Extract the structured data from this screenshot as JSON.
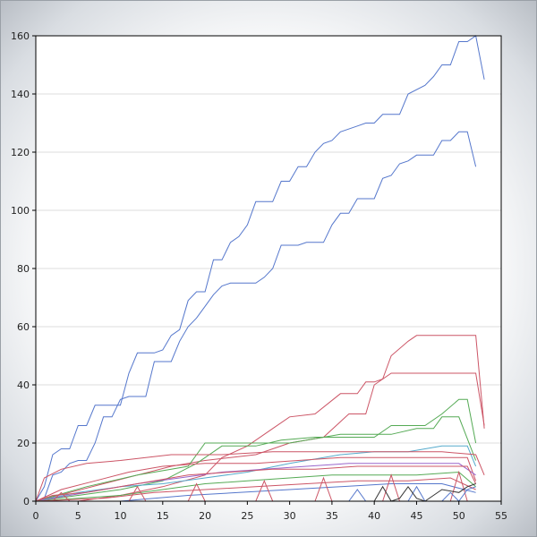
{
  "chart_data": {
    "type": "line",
    "title": "",
    "xlabel": "",
    "ylabel": "",
    "xlim": [
      0,
      55
    ],
    "ylim": [
      0,
      160
    ],
    "x_ticks": [
      "0",
      "5",
      "10",
      "15",
      "20",
      "25",
      "30",
      "35",
      "40",
      "45",
      "50",
      "55"
    ],
    "y_ticks": [
      "0",
      "20",
      "40",
      "60",
      "80",
      "100",
      "120",
      "140",
      "160"
    ],
    "grid": "horizontal",
    "legend": "none",
    "series": [
      {
        "color": "#5577cc",
        "points": [
          [
            0,
            0
          ],
          [
            1,
            5
          ],
          [
            2,
            16
          ],
          [
            3,
            18
          ],
          [
            4,
            18
          ],
          [
            5,
            26
          ],
          [
            6,
            26
          ],
          [
            7,
            33
          ],
          [
            9,
            33
          ],
          [
            10,
            33
          ],
          [
            11,
            44
          ],
          [
            12,
            51
          ],
          [
            14,
            51
          ],
          [
            15,
            52
          ],
          [
            16,
            57
          ],
          [
            17,
            59
          ],
          [
            18,
            69
          ],
          [
            19,
            72
          ],
          [
            20,
            72
          ],
          [
            21,
            83
          ],
          [
            22,
            83
          ],
          [
            23,
            89
          ],
          [
            24,
            91
          ],
          [
            25,
            95
          ],
          [
            26,
            103
          ],
          [
            28,
            103
          ],
          [
            29,
            110
          ],
          [
            30,
            110
          ],
          [
            31,
            115
          ],
          [
            32,
            115
          ],
          [
            33,
            120
          ],
          [
            34,
            123
          ],
          [
            35,
            124
          ],
          [
            36,
            127
          ],
          [
            38,
            129
          ],
          [
            39,
            130
          ],
          [
            40,
            130
          ],
          [
            41,
            133
          ],
          [
            43,
            133
          ],
          [
            44,
            140
          ],
          [
            46,
            143
          ],
          [
            47,
            146
          ],
          [
            48,
            150
          ],
          [
            49,
            150
          ],
          [
            50,
            158
          ],
          [
            51,
            158
          ],
          [
            52,
            160
          ],
          [
            53,
            145
          ]
        ]
      },
      {
        "color": "#5577cc",
        "points": [
          [
            0,
            0
          ],
          [
            1,
            1
          ],
          [
            2,
            9
          ],
          [
            3,
            10
          ],
          [
            4,
            13
          ],
          [
            5,
            14
          ],
          [
            6,
            14
          ],
          [
            7,
            20
          ],
          [
            8,
            29
          ],
          [
            9,
            29
          ],
          [
            10,
            35
          ],
          [
            11,
            36
          ],
          [
            13,
            36
          ],
          [
            14,
            48
          ],
          [
            16,
            48
          ],
          [
            17,
            55
          ],
          [
            18,
            60
          ],
          [
            19,
            63
          ],
          [
            20,
            67
          ],
          [
            21,
            71
          ],
          [
            22,
            74
          ],
          [
            23,
            75
          ],
          [
            26,
            75
          ],
          [
            27,
            77
          ],
          [
            28,
            80
          ],
          [
            29,
            88
          ],
          [
            31,
            88
          ],
          [
            32,
            89
          ],
          [
            34,
            89
          ],
          [
            35,
            95
          ],
          [
            36,
            99
          ],
          [
            37,
            99
          ],
          [
            38,
            104
          ],
          [
            40,
            104
          ],
          [
            41,
            111
          ],
          [
            42,
            112
          ],
          [
            43,
            116
          ],
          [
            44,
            117
          ],
          [
            45,
            119
          ],
          [
            47,
            119
          ],
          [
            48,
            124
          ],
          [
            49,
            124
          ],
          [
            50,
            127
          ],
          [
            51,
            127
          ],
          [
            52,
            115
          ]
        ]
      },
      {
        "color": "#cc5566",
        "points": [
          [
            0,
            0
          ],
          [
            5,
            0
          ],
          [
            10,
            2
          ],
          [
            15,
            5
          ],
          [
            20,
            9
          ],
          [
            22,
            15
          ],
          [
            25,
            19
          ],
          [
            28,
            25
          ],
          [
            30,
            29
          ],
          [
            33,
            30
          ],
          [
            36,
            37
          ],
          [
            38,
            37
          ],
          [
            39,
            41
          ],
          [
            40,
            41
          ],
          [
            41,
            42
          ],
          [
            42,
            50
          ],
          [
            44,
            55
          ],
          [
            45,
            57
          ],
          [
            52,
            57
          ],
          [
            53,
            25
          ]
        ]
      },
      {
        "color": "#cc5566",
        "points": [
          [
            0,
            0
          ],
          [
            4,
            3
          ],
          [
            8,
            6
          ],
          [
            12,
            9
          ],
          [
            16,
            12
          ],
          [
            20,
            14
          ],
          [
            26,
            16
          ],
          [
            30,
            20
          ],
          [
            34,
            22
          ],
          [
            37,
            30
          ],
          [
            39,
            30
          ],
          [
            40,
            40
          ],
          [
            42,
            44
          ],
          [
            52,
            44
          ],
          [
            53,
            26
          ]
        ]
      },
      {
        "color": "#55aa55",
        "points": [
          [
            0,
            0
          ],
          [
            5,
            2
          ],
          [
            10,
            4
          ],
          [
            15,
            7
          ],
          [
            19,
            13
          ],
          [
            20,
            15
          ],
          [
            22,
            19
          ],
          [
            26,
            19
          ],
          [
            29,
            21
          ],
          [
            33,
            22
          ],
          [
            37,
            22
          ],
          [
            40,
            22
          ],
          [
            42,
            26
          ],
          [
            46,
            26
          ],
          [
            48,
            30
          ],
          [
            50,
            35
          ],
          [
            51,
            35
          ],
          [
            52,
            20
          ]
        ]
      },
      {
        "color": "#55aa55",
        "points": [
          [
            0,
            0
          ],
          [
            6,
            5
          ],
          [
            12,
            9
          ],
          [
            18,
            12
          ],
          [
            20,
            20
          ],
          [
            30,
            20
          ],
          [
            36,
            23
          ],
          [
            42,
            23
          ],
          [
            45,
            25
          ],
          [
            47,
            25
          ],
          [
            48,
            29
          ],
          [
            50,
            29
          ],
          [
            52,
            14
          ]
        ]
      },
      {
        "color": "#55aacc",
        "points": [
          [
            0,
            0
          ],
          [
            5,
            3
          ],
          [
            10,
            5
          ],
          [
            15,
            6
          ],
          [
            20,
            8
          ],
          [
            25,
            10
          ],
          [
            30,
            13
          ],
          [
            36,
            16
          ],
          [
            40,
            17
          ],
          [
            44,
            17
          ],
          [
            48,
            19
          ],
          [
            51,
            19
          ],
          [
            52,
            12
          ]
        ]
      },
      {
        "color": "#cc5566",
        "points": [
          [
            0,
            0
          ],
          [
            1,
            8
          ],
          [
            3,
            11
          ],
          [
            6,
            13
          ],
          [
            10,
            14
          ],
          [
            13,
            15
          ],
          [
            16,
            16
          ],
          [
            22,
            16
          ],
          [
            28,
            17
          ],
          [
            34,
            17
          ],
          [
            38,
            17
          ],
          [
            42,
            17
          ],
          [
            48,
            17
          ],
          [
            52,
            16
          ],
          [
            53,
            9
          ]
        ]
      },
      {
        "color": "#cc5566",
        "points": [
          [
            0,
            0
          ],
          [
            3,
            4
          ],
          [
            7,
            7
          ],
          [
            11,
            10
          ],
          [
            15,
            12
          ],
          [
            20,
            13
          ],
          [
            26,
            13
          ],
          [
            31,
            14
          ],
          [
            36,
            15
          ],
          [
            40,
            15
          ],
          [
            44,
            15
          ],
          [
            48,
            15
          ],
          [
            51,
            15
          ],
          [
            52,
            7
          ]
        ]
      },
      {
        "color": "#9966cc",
        "points": [
          [
            0,
            0
          ],
          [
            4,
            2
          ],
          [
            8,
            4
          ],
          [
            12,
            6
          ],
          [
            17,
            8
          ],
          [
            22,
            10
          ],
          [
            27,
            11
          ],
          [
            32,
            12
          ],
          [
            37,
            13
          ],
          [
            42,
            13
          ],
          [
            46,
            13
          ],
          [
            50,
            13
          ],
          [
            52,
            9
          ]
        ]
      },
      {
        "color": "#cc5566",
        "points": [
          [
            0,
            0
          ],
          [
            2,
            2
          ],
          [
            6,
            3
          ],
          [
            10,
            5
          ],
          [
            14,
            7
          ],
          [
            18,
            9
          ],
          [
            23,
            10
          ],
          [
            28,
            11
          ],
          [
            33,
            11
          ],
          [
            38,
            12
          ],
          [
            43,
            12
          ],
          [
            47,
            12
          ],
          [
            51,
            12
          ],
          [
            52,
            6
          ]
        ]
      },
      {
        "color": "#55aa55",
        "points": [
          [
            0,
            0
          ],
          [
            5,
            1
          ],
          [
            10,
            2
          ],
          [
            15,
            4
          ],
          [
            20,
            6
          ],
          [
            25,
            7
          ],
          [
            30,
            8
          ],
          [
            35,
            9
          ],
          [
            40,
            9
          ],
          [
            45,
            9
          ],
          [
            50,
            10
          ],
          [
            52,
            5
          ]
        ]
      },
      {
        "color": "#cc5566",
        "points": [
          [
            0,
            0
          ],
          [
            8,
            1
          ],
          [
            14,
            3
          ],
          [
            20,
            4
          ],
          [
            26,
            5
          ],
          [
            32,
            6
          ],
          [
            38,
            7
          ],
          [
            44,
            7
          ],
          [
            49,
            8
          ],
          [
            52,
            4
          ]
        ]
      },
      {
        "color": "#5577cc",
        "points": [
          [
            0,
            0
          ],
          [
            10,
            0
          ],
          [
            18,
            2
          ],
          [
            24,
            3
          ],
          [
            30,
            4
          ],
          [
            36,
            5
          ],
          [
            42,
            6
          ],
          [
            48,
            6
          ],
          [
            52,
            3
          ]
        ]
      },
      {
        "color": "#cc5566",
        "points": [
          [
            2,
            0
          ],
          [
            3,
            3
          ],
          [
            4,
            0
          ],
          [
            11,
            0
          ],
          [
            12,
            5
          ],
          [
            13,
            0
          ],
          [
            18,
            0
          ],
          [
            19,
            6
          ],
          [
            20,
            0
          ],
          [
            26,
            0
          ],
          [
            27,
            7
          ],
          [
            28,
            0
          ],
          [
            33,
            0
          ],
          [
            34,
            8
          ],
          [
            35,
            0
          ],
          [
            41,
            0
          ],
          [
            42,
            9
          ],
          [
            43,
            0
          ],
          [
            49,
            0
          ],
          [
            50,
            10
          ],
          [
            51,
            0
          ]
        ]
      },
      {
        "color": "#5577cc",
        "points": [
          [
            37,
            0
          ],
          [
            38,
            4
          ],
          [
            39,
            0
          ],
          [
            44,
            0
          ],
          [
            45,
            5
          ],
          [
            46,
            0
          ],
          [
            48,
            0
          ],
          [
            49,
            3
          ],
          [
            50,
            0
          ],
          [
            51,
            4
          ],
          [
            52,
            5
          ]
        ]
      },
      {
        "color": "#333333",
        "points": [
          [
            40,
            0
          ],
          [
            41,
            5
          ],
          [
            42,
            0
          ],
          [
            43,
            1
          ],
          [
            44,
            5
          ],
          [
            45,
            1
          ],
          [
            46,
            0
          ],
          [
            48,
            4
          ],
          [
            50,
            3
          ],
          [
            51,
            5
          ],
          [
            52,
            6
          ]
        ]
      }
    ]
  }
}
